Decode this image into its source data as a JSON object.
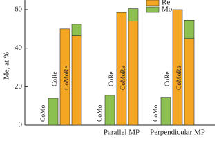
{
  "chart_data": {
    "type": "bar",
    "stacked": true,
    "y_label": "Me, at %",
    "groups": [
      null,
      "Parallel MP",
      "Perpendicular MP"
    ],
    "categories": [
      "CoMo",
      "CoRe",
      "CoMoRe",
      "CoMo",
      "CoRe",
      "CoMoRe",
      "CoMo",
      "CoRe",
      "CoMoRe"
    ],
    "series": [
      {
        "name": "Re",
        "color": "#f5a623",
        "values": [
          0,
          50,
          46.5,
          0,
          58.5,
          54,
          0,
          60,
          45
        ]
      },
      {
        "name": "Mo",
        "color": "#8cc152",
        "values": [
          14,
          0,
          6,
          15.5,
          0,
          6.5,
          14.5,
          0,
          9.5
        ]
      }
    ],
    "ylim": [
      0,
      65
    ],
    "yticks": [
      0,
      20,
      40,
      60
    ]
  }
}
